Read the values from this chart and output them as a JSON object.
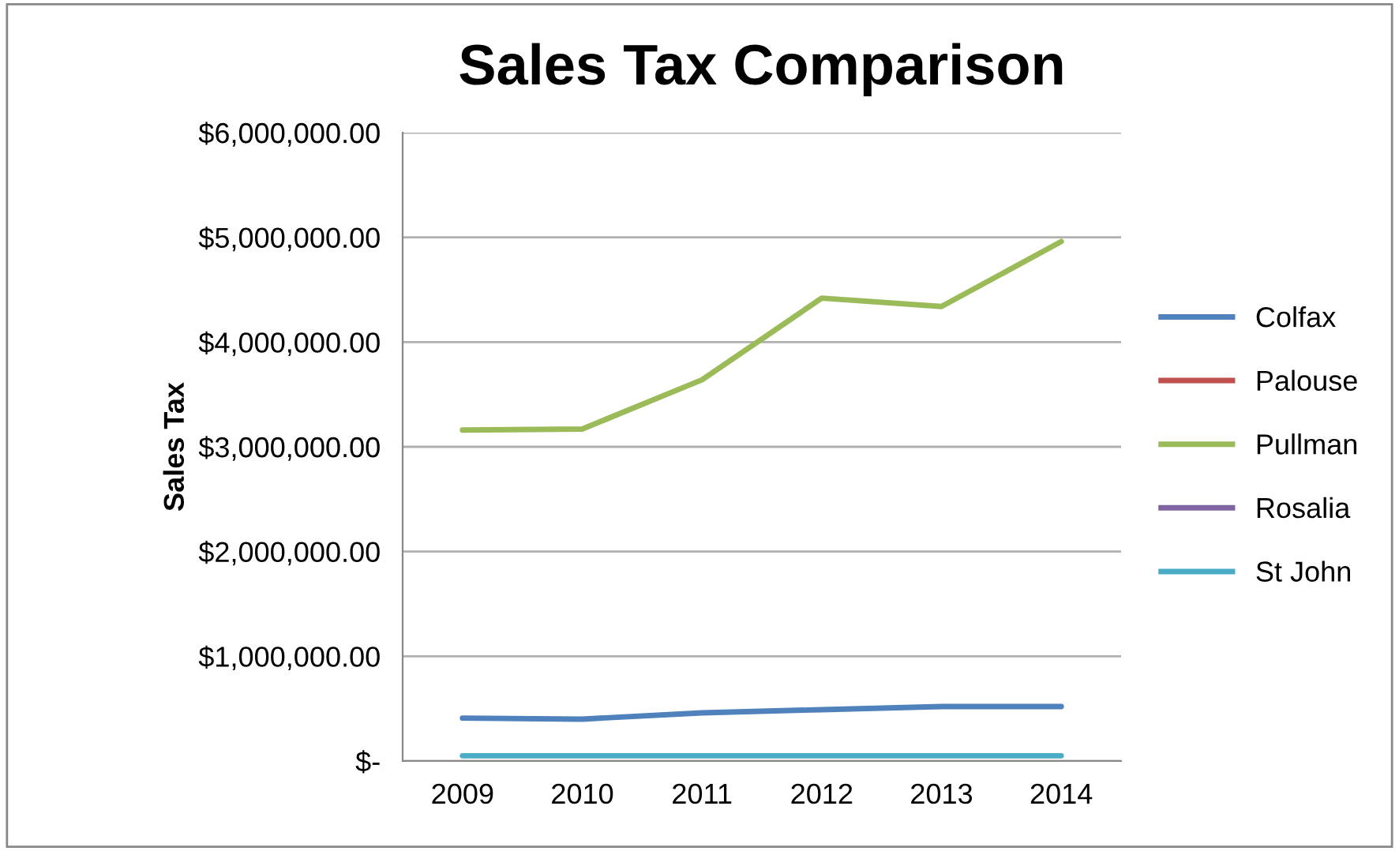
{
  "chart_data": {
    "type": "line",
    "title": "Sales Tax Comparison",
    "ylabel": "Sales Tax",
    "categories": [
      "2009",
      "2010",
      "2011",
      "2012",
      "2013",
      "2014"
    ],
    "series": [
      {
        "name": "Colfax",
        "color": "#4f81bd",
        "values": [
          410000,
          400000,
          460000,
          490000,
          520000,
          520000
        ]
      },
      {
        "name": "Palouse",
        "color": "#c0504d",
        "values": [
          null,
          null,
          null,
          null,
          null,
          null
        ]
      },
      {
        "name": "Pullman",
        "color": "#9bbb59",
        "values": [
          3160000,
          3170000,
          3640000,
          4420000,
          4340000,
          4960000
        ]
      },
      {
        "name": "Rosalia",
        "color": "#8064a2",
        "values": [
          null,
          null,
          null,
          null,
          null,
          null
        ]
      },
      {
        "name": "St John",
        "color": "#4bacc6",
        "values": [
          50000,
          50000,
          50000,
          50000,
          50000,
          50000
        ]
      }
    ],
    "ylim": [
      0,
      6000000
    ],
    "yticks": [
      {
        "value": 0,
        "label": "$-"
      },
      {
        "value": 1000000,
        "label": "$1,000,000.00"
      },
      {
        "value": 2000000,
        "label": "$2,000,000.00"
      },
      {
        "value": 3000000,
        "label": "$3,000,000.00"
      },
      {
        "value": 4000000,
        "label": "$4,000,000.00"
      },
      {
        "value": 5000000,
        "label": "$5,000,000.00"
      },
      {
        "value": 6000000,
        "label": "$6,000,000.00"
      }
    ],
    "grid": "y",
    "legend": "right",
    "marker": "none",
    "line_style": "solid"
  }
}
